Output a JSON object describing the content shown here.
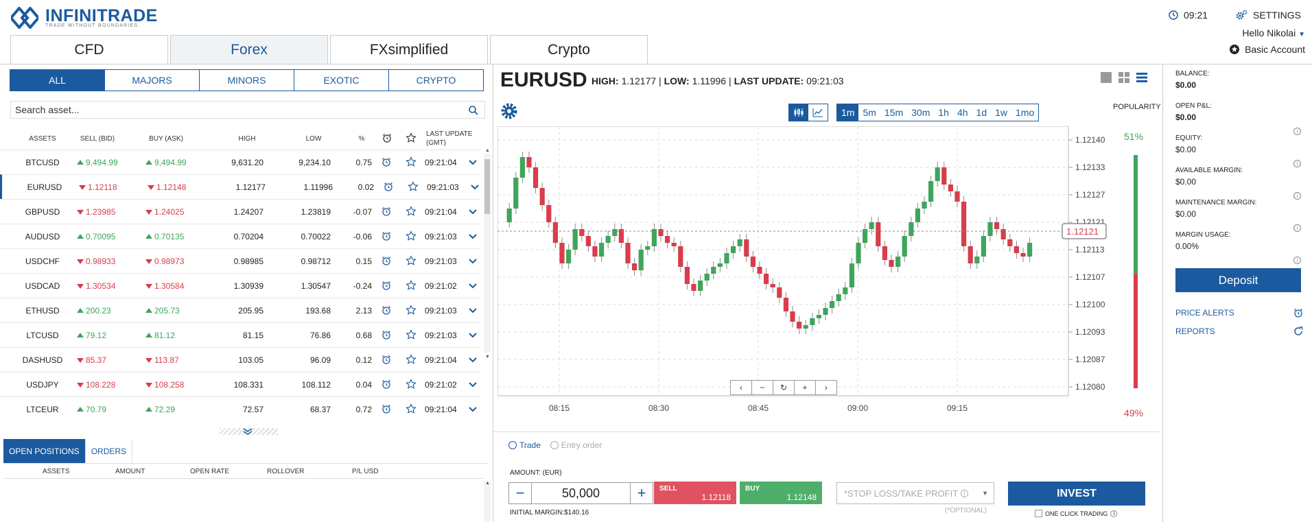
{
  "brand": {
    "name": "INFINITRADE",
    "tagline": "TRADE WITHOUT BOUNDARIES"
  },
  "header": {
    "time": "09:21",
    "settings": "SETTINGS",
    "user": "Hello Nikolai",
    "account": "Basic Account"
  },
  "main_tabs": [
    "CFD",
    "Forex",
    "FXsimplified",
    "Crypto"
  ],
  "sub_tabs": [
    "ALL",
    "MAJORS",
    "MINORS",
    "EXOTIC",
    "CRYPTO"
  ],
  "search": {
    "placeholder": "Search asset..."
  },
  "table": {
    "headers": {
      "assets": "ASSETS",
      "sell": "SELL (BID)",
      "buy": "BUY (ASK)",
      "high": "HIGH",
      "low": "LOW",
      "pct": "%",
      "update": "LAST UPDATE",
      "update2": "(GMT)"
    },
    "rows": [
      {
        "asset": "BTCUSD",
        "sell": "9,494.99",
        "buy": "9,494.99",
        "high": "9,631.20",
        "low": "9,234.10",
        "pct": "0.75",
        "time": "09:21:04",
        "dir": "up"
      },
      {
        "asset": "EURUSD",
        "sell": "1.12118",
        "buy": "1.12148",
        "high": "1.12177",
        "low": "1.11996",
        "pct": "0.02",
        "time": "09:21:03",
        "dir": "dn"
      },
      {
        "asset": "GBPUSD",
        "sell": "1.23985",
        "buy": "1.24025",
        "high": "1.24207",
        "low": "1.23819",
        "pct": "-0.07",
        "time": "09:21:04",
        "dir": "dn"
      },
      {
        "asset": "AUDUSD",
        "sell": "0.70095",
        "buy": "0.70135",
        "high": "0.70204",
        "low": "0.70022",
        "pct": "-0.06",
        "time": "09:21:03",
        "dir": "up"
      },
      {
        "asset": "USDCHF",
        "sell": "0.98933",
        "buy": "0.98973",
        "high": "0.98985",
        "low": "0.98712",
        "pct": "0.15",
        "time": "09:21:03",
        "dir": "dn"
      },
      {
        "asset": "USDCAD",
        "sell": "1.30534",
        "buy": "1.30584",
        "high": "1.30939",
        "low": "1.30547",
        "pct": "-0.24",
        "time": "09:21:02",
        "dir": "dn"
      },
      {
        "asset": "ETHUSD",
        "sell": "200.23",
        "buy": "205.73",
        "high": "205.95",
        "low": "193.68",
        "pct": "2.13",
        "time": "09:21:03",
        "dir": "up"
      },
      {
        "asset": "LTCUSD",
        "sell": "79.12",
        "buy": "81.12",
        "high": "81.15",
        "low": "76.86",
        "pct": "0.68",
        "time": "09:21:03",
        "dir": "up"
      },
      {
        "asset": "DASHUSD",
        "sell": "85.37",
        "buy": "113.87",
        "high": "103.05",
        "low": "96.09",
        "pct": "0.12",
        "time": "09:21:04",
        "dir": "dn"
      },
      {
        "asset": "USDJPY",
        "sell": "108.228",
        "buy": "108.258",
        "high": "108.331",
        "low": "108.112",
        "pct": "0.04",
        "time": "09:21:02",
        "dir": "dn"
      },
      {
        "asset": "LTCEUR",
        "sell": "70.79",
        "buy": "72.29",
        "high": "72.57",
        "low": "68.37",
        "pct": "0.72",
        "time": "09:21:04",
        "dir": "up"
      }
    ]
  },
  "bottom_tabs": [
    "OPEN POSITIONS",
    "ORDERS"
  ],
  "positions_headers": [
    "ASSETS",
    "AMOUNT",
    "OPEN RATE",
    "ROLLOVER",
    "P/L USD"
  ],
  "instrument": {
    "symbol": "EURUSD",
    "high_label": "HIGH:",
    "high": "1.12177",
    "low_label": "LOW:",
    "low": "1.11996",
    "update_label": "LAST UPDATE:",
    "update": "09:21:03"
  },
  "timeframes": [
    "1m",
    "5m",
    "15m",
    "30m",
    "1h",
    "4h",
    "1d",
    "1w",
    "1mo"
  ],
  "popularity": {
    "label": "POPULARITY",
    "up": "51%",
    "down": "49%",
    "up_value": 51
  },
  "chart_data": {
    "type": "candlestick",
    "y_ticks": [
      "1.12140",
      "1.12133",
      "1.12127",
      "1.12121",
      "1.12113",
      "1.12107",
      "1.12100",
      "1.12093",
      "1.12087",
      "1.12080"
    ],
    "x_ticks": [
      "08:15",
      "08:30",
      "08:45",
      "09:00",
      "09:15"
    ],
    "current_price": "1.12121",
    "ylim": [
      1.12078,
      1.12148
    ]
  },
  "trade": {
    "mode_trade": "Trade",
    "mode_entry": "Entry order",
    "amount_label": "AMOUNT: (EUR)",
    "amount": "50,000",
    "initial_margin": "INITIAL MARGIN:$140.16",
    "sell_label": "SELL",
    "sell_price": "1.12118",
    "buy_label": "BUY",
    "buy_price": "1.12148",
    "sltp_placeholder": "*STOP LOSS/TAKE PROFIT",
    "optional": "(*OPTIONAL)",
    "invest": "INVEST",
    "one_click": "ONE CLICK TRADING"
  },
  "account": [
    {
      "label": "BALANCE:",
      "value": "$0.00",
      "bold": true
    },
    {
      "label": "OPEN P&L:",
      "value": "$0.00",
      "bold": true
    },
    {
      "label": "EQUITY:",
      "value": "$0.00"
    },
    {
      "label": "AVAILABLE MARGIN:",
      "value": "$0.00"
    },
    {
      "label": "MAINTENANCE MARGIN:",
      "value": "$0.00"
    },
    {
      "label": "MARGIN USAGE:",
      "value": "0.00%"
    }
  ],
  "deposit": "Deposit",
  "links": {
    "alerts": "PRICE ALERTS",
    "reports": "REPORTS"
  },
  "colors": {
    "brand": "#1b5a9e",
    "up": "#3fa55b",
    "down": "#d93c4a"
  }
}
